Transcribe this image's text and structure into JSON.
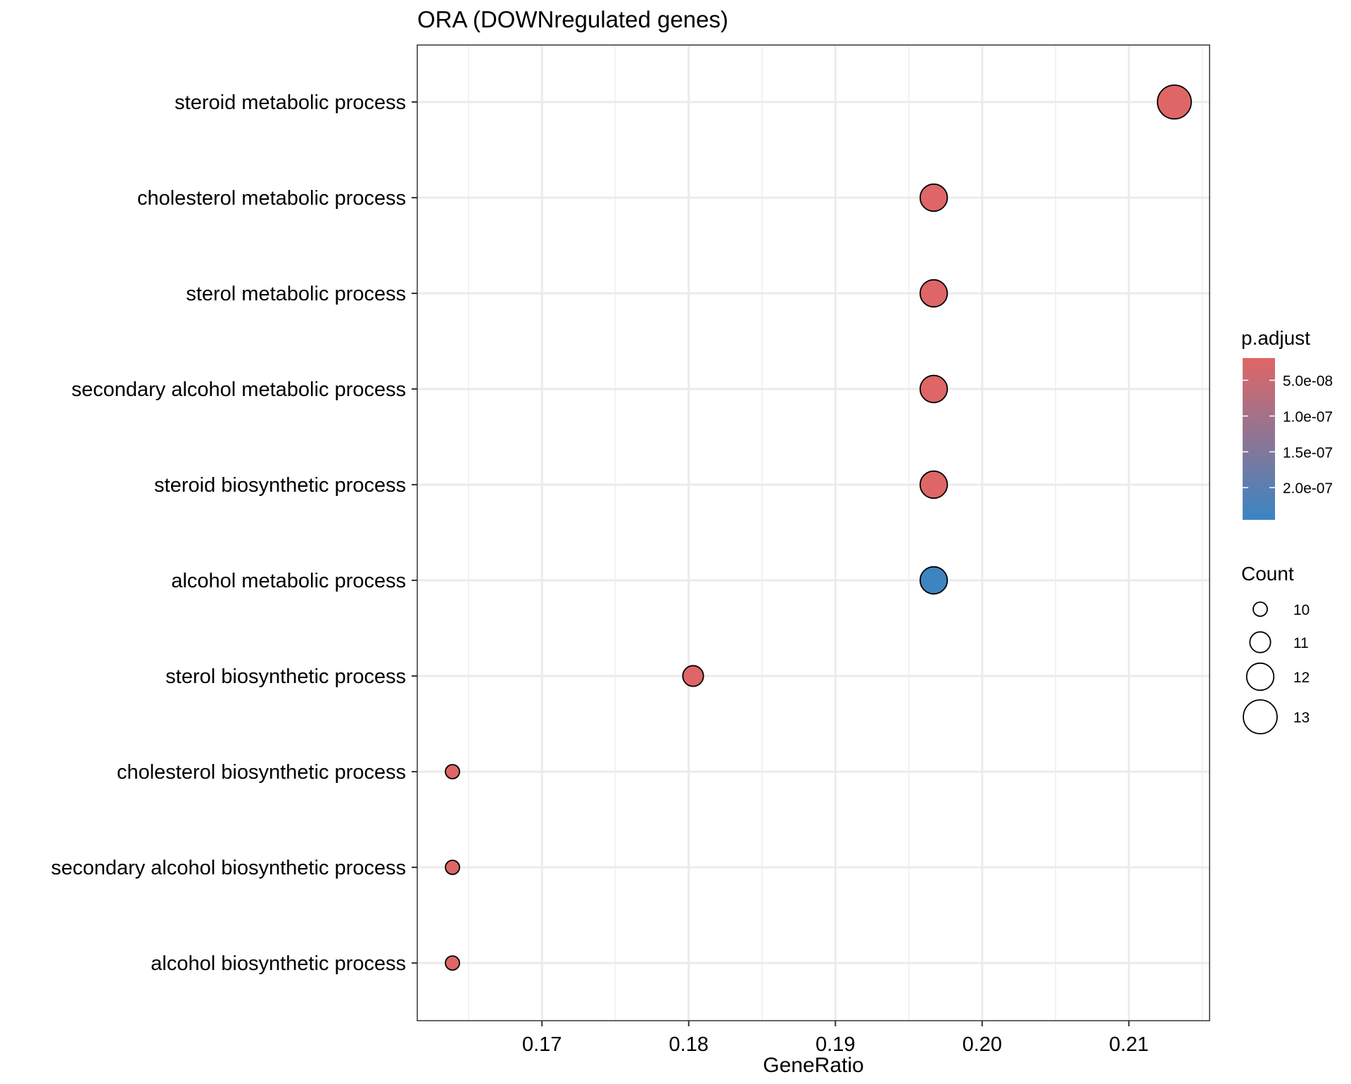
{
  "chart_data": {
    "type": "scatter",
    "title": "ORA (DOWNregulated genes)",
    "xlabel": "GeneRatio",
    "ylabel": "",
    "xlim": [
      0.1615,
      0.2155
    ],
    "xticks": [
      "0.17",
      "0.18",
      "0.19",
      "0.20",
      "0.21"
    ],
    "grid": true,
    "categories": [
      "steroid metabolic process",
      "cholesterol metabolic process",
      "sterol metabolic process",
      "secondary alcohol metabolic process",
      "steroid biosynthetic process",
      "alcohol metabolic process",
      "sterol biosynthetic process",
      "cholesterol biosynthetic process",
      "secondary alcohol biosynthetic process",
      "alcohol biosynthetic process"
    ],
    "points": [
      {
        "term": "steroid metabolic process",
        "gene_ratio": 0.2131,
        "count": 13,
        "p_adjust": 2e-08
      },
      {
        "term": "cholesterol metabolic process",
        "gene_ratio": 0.1967,
        "count": 12,
        "p_adjust": 2.2e-08
      },
      {
        "term": "sterol metabolic process",
        "gene_ratio": 0.1967,
        "count": 12,
        "p_adjust": 2.2e-08
      },
      {
        "term": "secondary alcohol metabolic process",
        "gene_ratio": 0.1967,
        "count": 12,
        "p_adjust": 2.2e-08
      },
      {
        "term": "steroid biosynthetic process",
        "gene_ratio": 0.1967,
        "count": 12,
        "p_adjust": 2.2e-08
      },
      {
        "term": "alcohol metabolic process",
        "gene_ratio": 0.1967,
        "count": 12,
        "p_adjust": 2.4e-07
      },
      {
        "term": "sterol biosynthetic process",
        "gene_ratio": 0.1803,
        "count": 11,
        "p_adjust": 2.2e-08
      },
      {
        "term": "cholesterol biosynthetic process",
        "gene_ratio": 0.1639,
        "count": 10,
        "p_adjust": 2.2e-08
      },
      {
        "term": "secondary alcohol biosynthetic process",
        "gene_ratio": 0.1639,
        "count": 10,
        "p_adjust": 2.2e-08
      },
      {
        "term": "alcohol biosynthetic process",
        "gene_ratio": 0.1639,
        "count": 10,
        "p_adjust": 2.2e-08
      }
    ],
    "legend_color": {
      "title": "p.adjust",
      "range": [
        1.9e-08,
        2.45e-07
      ],
      "ticks": [
        {
          "label": "5.0e-08",
          "value": 5e-08
        },
        {
          "label": "1.0e-07",
          "value": 1e-07
        },
        {
          "label": "1.5e-07",
          "value": 1.5e-07
        },
        {
          "label": "2.0e-07",
          "value": 2e-07
        }
      ],
      "low_color": "#e06666",
      "high_color": "#3a85c3",
      "placement": "right"
    },
    "legend_size": {
      "title": "Count",
      "entries": [
        {
          "label": "10",
          "value": 10
        },
        {
          "label": "11",
          "value": 11
        },
        {
          "label": "12",
          "value": 12
        },
        {
          "label": "13",
          "value": 13
        }
      ],
      "placement": "right"
    },
    "colors": {
      "panel_border": "#333333",
      "grid_major": "#ebebeb",
      "grid_minor": "#f2f2f2",
      "point_stroke": "#000000",
      "text": "#000000"
    }
  }
}
